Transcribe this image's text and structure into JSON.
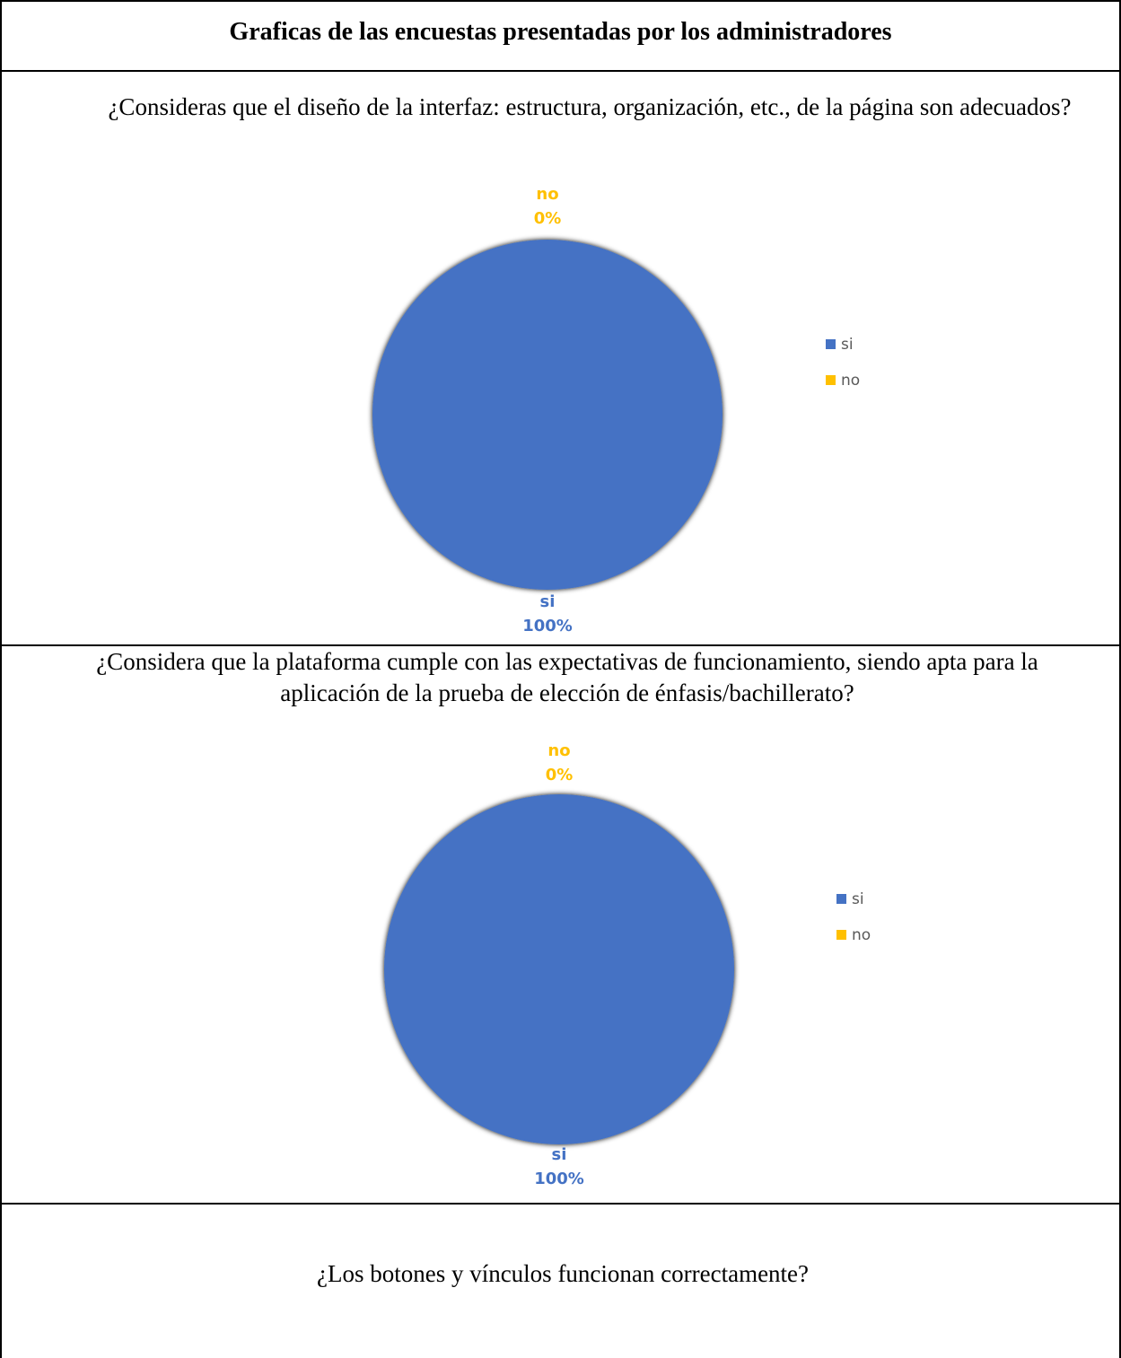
{
  "header": {
    "title": "Graficas de las encuestas presentadas por los administradores"
  },
  "questions": [
    "¿Consideras que el diseño de la interfaz: estructura, organización, etc., de la página son adecuados?",
    "¿Considera que la plataforma cumple con las expectativas de funcionamiento, siendo apta para la aplicación de la prueba de elección de énfasis/bachillerato?",
    "¿Los botones y vínculos funcionan correctamente?"
  ],
  "colors": {
    "si": "#4472C4",
    "no": "#FFC000"
  },
  "chart_data": [
    {
      "type": "pie",
      "title": "",
      "categories": [
        "si",
        "no"
      ],
      "values": [
        100,
        0
      ],
      "data_labels": [
        "si\n100%",
        "no\n0%"
      ],
      "legend": {
        "entries": [
          "si",
          "no"
        ],
        "position": "right"
      }
    },
    {
      "type": "pie",
      "title": "",
      "categories": [
        "si",
        "no"
      ],
      "values": [
        100,
        0
      ],
      "data_labels": [
        "si\n100%",
        "no\n0%"
      ],
      "legend": {
        "entries": [
          "si",
          "no"
        ],
        "position": "right"
      }
    }
  ]
}
